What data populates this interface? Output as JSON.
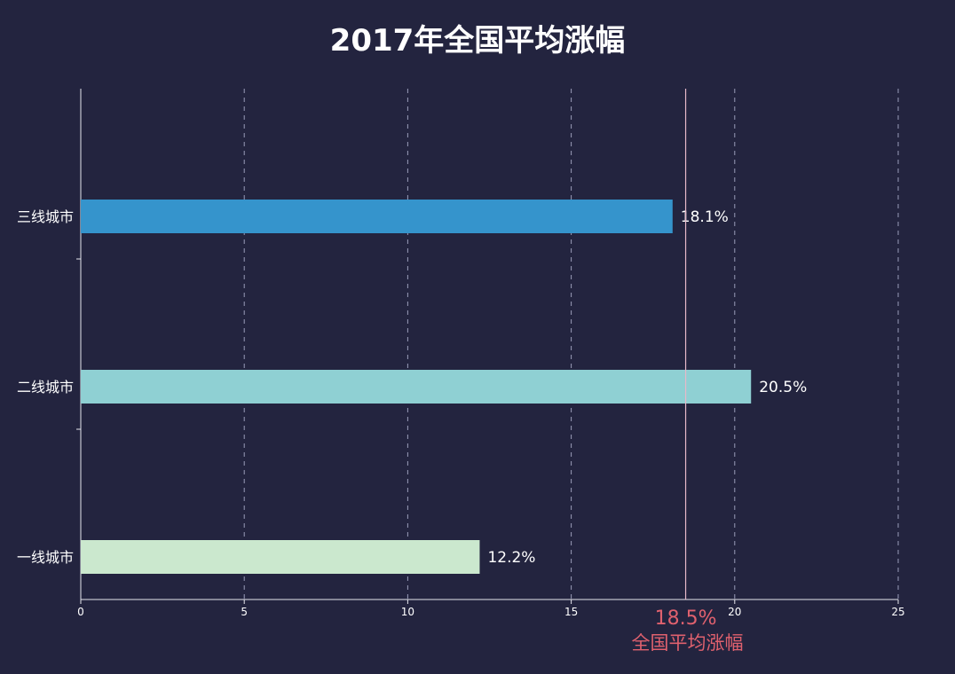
{
  "chart_data": {
    "type": "bar",
    "orientation": "horizontal",
    "title": "2017年全国平均涨幅",
    "categories": [
      "三线城市",
      "二线城市",
      "一线城市"
    ],
    "values": [
      18.1,
      20.5,
      12.2
    ],
    "value_labels": [
      "18.1%",
      "20.5%",
      "12.2%"
    ],
    "bar_colors": [
      "#3594cc",
      "#8fd0d3",
      "#cbe8ce"
    ],
    "xlim": [
      0,
      25
    ],
    "xticks": [
      0,
      5,
      10,
      15,
      20,
      25
    ],
    "xlabel": "",
    "ylabel": "",
    "grid": "vertical dashed",
    "reference_line": {
      "value": 18.5,
      "value_label": "18.5%",
      "label": "全国平均涨幅",
      "color": "#e0616e"
    }
  }
}
